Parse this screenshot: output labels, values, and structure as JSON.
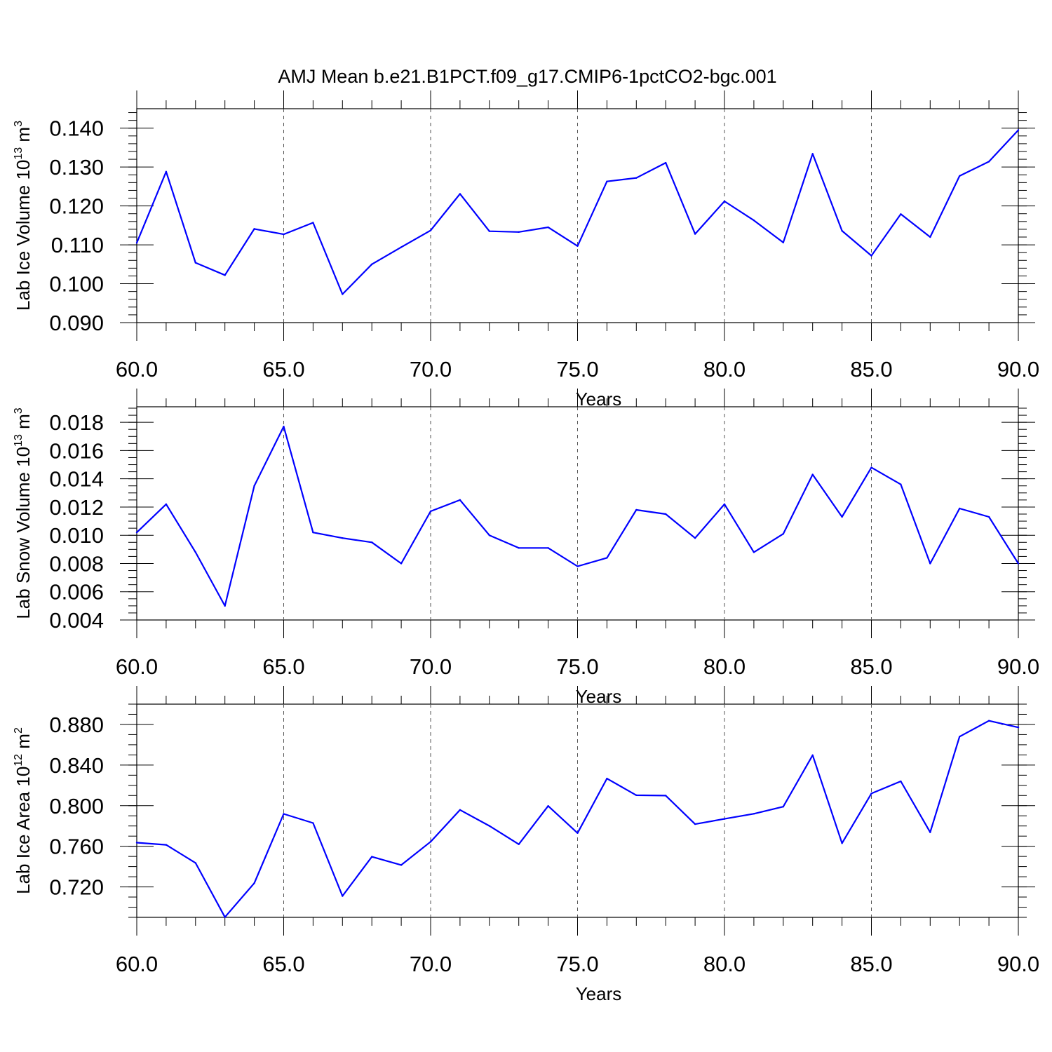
{
  "title": "AMJ Mean b.e21.B1PCT.f09_g17.CMIP6-1pctCO2-bgc.001",
  "colors": {
    "line": "#0000ff",
    "axis": "#000000",
    "grid": "#555555"
  },
  "chart_data": [
    {
      "type": "line",
      "ylabel_main": "Lab Ice Volume 10",
      "ylabel_exp": "13",
      "ylabel_unit": " m",
      "ylabel_unit_exp": "3",
      "xlabel": "Years",
      "xlim": [
        60,
        90
      ],
      "ylim": [
        0.09,
        0.145
      ],
      "x_ticks": [
        60,
        65,
        70,
        75,
        80,
        85,
        90
      ],
      "x_tick_labels": [
        "60.0",
        "65.0",
        "70.0",
        "75.0",
        "80.0",
        "85.0",
        "90.0"
      ],
      "y_ticks": [
        0.09,
        0.1,
        0.11,
        0.12,
        0.13,
        0.14
      ],
      "y_tick_labels": [
        "0.090",
        "0.100",
        "0.110",
        "0.120",
        "0.130",
        "0.140"
      ],
      "y_minor_step": 0.002,
      "x": [
        60,
        61,
        62,
        63,
        64,
        65,
        66,
        67,
        68,
        69,
        70,
        71,
        72,
        73,
        74,
        75,
        76,
        77,
        78,
        79,
        80,
        81,
        82,
        83,
        84,
        85,
        86,
        87,
        88,
        89,
        90
      ],
      "values": [
        0.1105,
        0.1288,
        0.1054,
        0.1022,
        0.1141,
        0.1127,
        0.1157,
        0.0973,
        0.105,
        0.1094,
        0.1137,
        0.1231,
        0.1135,
        0.1133,
        0.1145,
        0.1097,
        0.1263,
        0.1272,
        0.1311,
        0.1128,
        0.1212,
        0.1163,
        0.1106,
        0.1334,
        0.1136,
        0.1072,
        0.1179,
        0.112,
        0.1277,
        0.1314,
        0.1395
      ]
    },
    {
      "type": "line",
      "ylabel_main": "Lab Snow Volume 10",
      "ylabel_exp": "13",
      "ylabel_unit": " m",
      "ylabel_unit_exp": "3",
      "xlabel": "Years",
      "xlim": [
        60,
        90
      ],
      "ylim": [
        0.004,
        0.0191
      ],
      "x_ticks": [
        60,
        65,
        70,
        75,
        80,
        85,
        90
      ],
      "x_tick_labels": [
        "60.0",
        "65.0",
        "70.0",
        "75.0",
        "80.0",
        "85.0",
        "90.0"
      ],
      "y_ticks": [
        0.004,
        0.006,
        0.008,
        0.01,
        0.012,
        0.014,
        0.016,
        0.018
      ],
      "y_tick_labels": [
        "0.004",
        "0.006",
        "0.008",
        "0.010",
        "0.012",
        "0.014",
        "0.016",
        "0.018"
      ],
      "y_minor_step": 0.0005,
      "x": [
        60,
        61,
        62,
        63,
        64,
        65,
        66,
        67,
        68,
        69,
        70,
        71,
        72,
        73,
        74,
        75,
        76,
        77,
        78,
        79,
        80,
        81,
        82,
        83,
        84,
        85,
        86,
        87,
        88,
        89,
        90
      ],
      "values": [
        0.0102,
        0.0122,
        0.0088,
        0.005,
        0.0135,
        0.0177,
        0.0102,
        0.0098,
        0.0095,
        0.008,
        0.0117,
        0.0125,
        0.01,
        0.0091,
        0.0091,
        0.0078,
        0.0084,
        0.0118,
        0.0115,
        0.0098,
        0.0122,
        0.0088,
        0.0101,
        0.0143,
        0.0113,
        0.0148,
        0.0136,
        0.008,
        0.0119,
        0.0113,
        0.008
      ]
    },
    {
      "type": "line",
      "ylabel_main": "Lab Ice Area 10",
      "ylabel_exp": "12",
      "ylabel_unit": " m",
      "ylabel_unit_exp": "2",
      "xlabel": "Years",
      "xlim": [
        60,
        90
      ],
      "ylim": [
        0.69,
        0.9
      ],
      "x_ticks": [
        60,
        65,
        70,
        75,
        80,
        85,
        90
      ],
      "x_tick_labels": [
        "60.0",
        "65.0",
        "70.0",
        "75.0",
        "80.0",
        "85.0",
        "90.0"
      ],
      "y_ticks": [
        0.72,
        0.76,
        0.8,
        0.84,
        0.88
      ],
      "y_tick_labels": [
        "0.720",
        "0.760",
        "0.800",
        "0.840",
        "0.880"
      ],
      "y_minor_step": 0.01,
      "x": [
        60,
        61,
        62,
        63,
        64,
        65,
        66,
        67,
        68,
        69,
        70,
        71,
        72,
        73,
        74,
        75,
        76,
        77,
        78,
        79,
        80,
        81,
        82,
        83,
        84,
        85,
        86,
        87,
        88,
        89,
        90
      ],
      "values": [
        0.7636,
        0.7614,
        0.7436,
        0.6902,
        0.7237,
        0.7919,
        0.7829,
        0.711,
        0.7497,
        0.7415,
        0.7645,
        0.7958,
        0.7801,
        0.762,
        0.7997,
        0.773,
        0.8267,
        0.8103,
        0.8099,
        0.7818,
        0.787,
        0.792,
        0.799,
        0.8497,
        0.763,
        0.812,
        0.824,
        0.7738,
        0.868,
        0.8836,
        0.8771
      ]
    }
  ]
}
